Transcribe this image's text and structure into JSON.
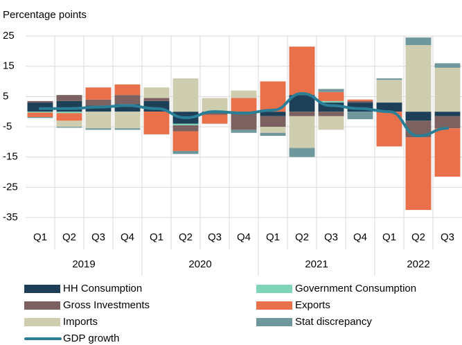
{
  "chart_data": {
    "type": "stacked-bar-line",
    "y_axis_label": "Percentage points",
    "categories": [
      "Q1",
      "Q2",
      "Q3",
      "Q4",
      "Q1",
      "Q2",
      "Q3",
      "Q4",
      "Q1",
      "Q2",
      "Q3",
      "Q4",
      "Q1",
      "Q2",
      "Q3"
    ],
    "x_groups": [
      {
        "label": "2019",
        "span": 4
      },
      {
        "label": "2020",
        "span": 4
      },
      {
        "label": "2021",
        "span": 4
      },
      {
        "label": "2022",
        "span": 3
      }
    ],
    "ylim": [
      -35,
      25
    ],
    "yticks": [
      25,
      15,
      5,
      -5,
      -15,
      -25,
      -35
    ],
    "grid": true,
    "series": [
      {
        "name": "HH Consumption",
        "color": "#1d3f58",
        "values": [
          3,
          3.5,
          2,
          2.5,
          3.5,
          -4,
          -0.5,
          -0.5,
          -1.5,
          5.5,
          3,
          3,
          3,
          -3,
          -1.5
        ]
      },
      {
        "name": "Government Consumption",
        "color": "#7fd3b7",
        "values": [
          -0.3,
          -0.5,
          0,
          0,
          0,
          -0.5,
          0,
          0,
          0,
          0,
          0.5,
          0,
          0,
          0,
          0
        ]
      },
      {
        "name": "Gross Investments",
        "color": "#7b6261",
        "values": [
          0.5,
          2,
          2,
          3,
          1,
          -2,
          -0.5,
          -5.5,
          -3.5,
          -1.5,
          -1.5,
          0.5,
          0,
          -5.5,
          -4
        ]
      },
      {
        "name": "Exports",
        "color": "#e8704a",
        "values": [
          -1.5,
          -2.5,
          4,
          3.5,
          -7.5,
          -6.5,
          -3,
          4.5,
          10,
          16,
          3,
          0.5,
          -11.5,
          -24,
          -16
        ]
      },
      {
        "name": "Imports",
        "color": "#cfcdb0",
        "values": [
          0,
          -2,
          -5.5,
          -5.5,
          3.5,
          11,
          4.5,
          2.5,
          -2,
          -10.5,
          -4.5,
          0,
          7.5,
          22,
          14.5
        ]
      },
      {
        "name": "Stat discrepancy",
        "color": "#6f989c",
        "values": [
          -0.3,
          -0.3,
          -0.5,
          -0.5,
          0,
          -1,
          0,
          -1,
          -1,
          -3,
          1,
          -2.5,
          0.5,
          2.5,
          1.5
        ]
      }
    ],
    "line": {
      "name": "GDP growth",
      "color": "#2a7f96",
      "values": [
        1,
        1,
        1.5,
        2,
        1,
        -2,
        0,
        -0.5,
        0.5,
        6,
        2,
        1,
        0,
        -8,
        -5.5
      ]
    }
  }
}
